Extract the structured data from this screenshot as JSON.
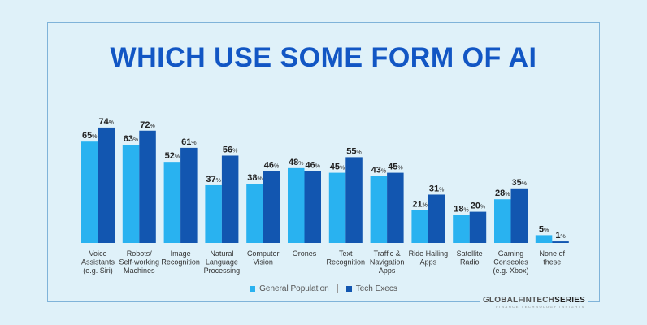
{
  "title": "WHICH USE SOME FORM OF AI",
  "colors": {
    "general": "#29b2f0",
    "tech": "#1256b0",
    "background": "#dff1f9",
    "title": "#1256c4"
  },
  "legend": {
    "general": "General Population",
    "tech": "Tech Execs"
  },
  "brand": {
    "part1": "GLOBALFINTECH",
    "part2": "SERIES",
    "tagline": "FINANCE TECHNOLOGY INSIGHTS"
  },
  "chart_data": {
    "type": "bar",
    "categories": [
      [
        "Voice",
        "Assistants",
        "(e.g. Siri)"
      ],
      [
        "Robots/",
        "Self-working",
        "Machines"
      ],
      [
        "Image",
        "Recognition"
      ],
      [
        "Natural",
        "Language",
        "Processing"
      ],
      [
        "Computer",
        "Vision"
      ],
      [
        "Orones"
      ],
      [
        "Text",
        "Recognition"
      ],
      [
        "Traffic &",
        "Navigation",
        "Apps"
      ],
      [
        "Ride Hailing",
        "Apps"
      ],
      [
        "Satellite",
        "Radio"
      ],
      [
        "Gaming",
        "Conseoles",
        "(e.g. Xbox)"
      ],
      [
        "None of",
        "these"
      ]
    ],
    "series": [
      {
        "name": "General Population",
        "values": [
          65,
          63,
          52,
          37,
          38,
          48,
          45,
          43,
          21,
          18,
          28,
          5
        ]
      },
      {
        "name": "Tech Execs",
        "values": [
          74,
          72,
          61,
          56,
          46,
          46,
          55,
          45,
          31,
          20,
          35,
          1
        ]
      }
    ],
    "unit": "%",
    "ylim": [
      0,
      100
    ],
    "grid": false,
    "legend_position": "bottom"
  }
}
